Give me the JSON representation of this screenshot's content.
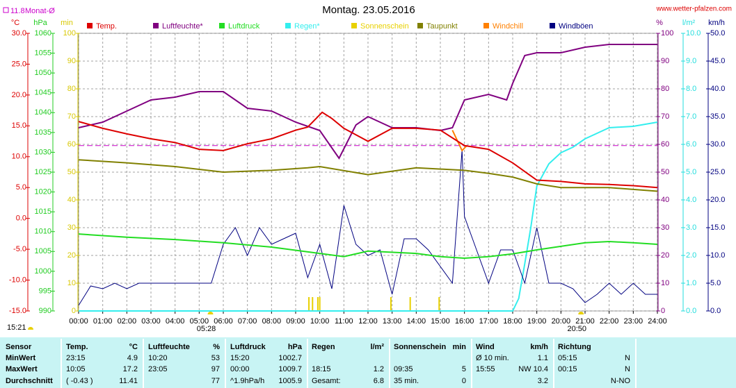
{
  "chart_data": {
    "type": "line",
    "title": "Montag. 23.05.2016",
    "source": "www.wetter-pfalzen.com",
    "updated": "15:21",
    "monthly_mean": {
      "value": 11.8,
      "label": "Monat-Ø",
      "axis": "temp",
      "color": "#cc00cc"
    },
    "xlim": [
      0,
      24
    ],
    "xticks": [
      {
        "value": 0,
        "label": "00:00"
      },
      {
        "value": 1,
        "label": "01:00"
      },
      {
        "value": 2,
        "label": "02:00"
      },
      {
        "value": 3,
        "label": "03:00"
      },
      {
        "value": 4,
        "label": "04:00"
      },
      {
        "value": 5,
        "label": "05:00"
      },
      {
        "value": 6,
        "label": "06:00"
      },
      {
        "value": 7,
        "label": "07:00"
      },
      {
        "value": 8,
        "label": "08:00"
      },
      {
        "value": 9,
        "label": "09:00"
      },
      {
        "value": 10,
        "label": "10:00"
      },
      {
        "value": 11,
        "label": "11:00"
      },
      {
        "value": 12,
        "label": "12:00"
      },
      {
        "value": 13,
        "label": "13:00"
      },
      {
        "value": 14,
        "label": "14:00"
      },
      {
        "value": 15,
        "label": "15:00"
      },
      {
        "value": 16,
        "label": "16:00"
      },
      {
        "value": 17,
        "label": "17:00"
      },
      {
        "value": 18,
        "label": "18:00"
      },
      {
        "value": 19,
        "label": "19:00"
      },
      {
        "value": 20,
        "label": "20:00"
      },
      {
        "value": 21,
        "label": "21:00"
      },
      {
        "value": 22,
        "label": "22:00"
      },
      {
        "value": 23,
        "label": "23:00"
      },
      {
        "value": 24,
        "label": "24:00"
      }
    ],
    "sunrise": {
      "x": 5.4667,
      "label": "05:28"
    },
    "sunset": {
      "x": 20.8333,
      "label": "20:50"
    },
    "grid": true,
    "axes": {
      "temp": {
        "unit": "°C",
        "color": "#dd0000",
        "lim": [
          -15,
          30
        ],
        "ticks": [
          {
            "value": -15,
            "label": "-15.0"
          },
          {
            "value": -10,
            "label": "-10.0"
          },
          {
            "value": -5,
            "label": "-5.0"
          },
          {
            "value": 0,
            "label": "0.0"
          },
          {
            "value": 5,
            "label": "5.0"
          },
          {
            "value": 10,
            "label": "10.0"
          },
          {
            "value": 15,
            "label": "15.0"
          },
          {
            "value": 20,
            "label": "20.0"
          },
          {
            "value": 25,
            "label": "25.0"
          },
          {
            "value": 30,
            "label": "30.0"
          }
        ]
      },
      "pressure": {
        "unit": "hPa",
        "color": "#22cc22",
        "lim": [
          990,
          1060
        ],
        "ticks": [
          990,
          995,
          1000,
          1005,
          1010,
          1015,
          1020,
          1025,
          1030,
          1035,
          1040,
          1045,
          1050,
          1055,
          1060
        ]
      },
      "minutes": {
        "unit": "min",
        "color": "#d8c800",
        "lim": [
          0,
          100
        ],
        "ticks": [
          0,
          10,
          20,
          30,
          40,
          50,
          60,
          70,
          80,
          90,
          100
        ]
      },
      "percent": {
        "unit": "%",
        "color": "#800080",
        "lim": [
          0,
          100
        ],
        "ticks": [
          0,
          10,
          20,
          30,
          40,
          50,
          60,
          70,
          80,
          90,
          100
        ]
      },
      "rain": {
        "unit": "l/m²",
        "color": "#22dddd",
        "lim": [
          0,
          10
        ],
        "ticks": [
          {
            "value": 0,
            "label": "0.0"
          },
          {
            "value": 1,
            "label": "1.0"
          },
          {
            "value": 2,
            "label": "2.0"
          },
          {
            "value": 3,
            "label": "3.0"
          },
          {
            "value": 4,
            "label": "4.0"
          },
          {
            "value": 5,
            "label": "5.0"
          },
          {
            "value": 6,
            "label": "6.0"
          },
          {
            "value": 7,
            "label": "7.0"
          },
          {
            "value": 8,
            "label": "8.0"
          },
          {
            "value": 9,
            "label": "9.0"
          },
          {
            "value": 10,
            "label": "10.0"
          }
        ]
      },
      "wind": {
        "unit": "km/h",
        "color": "#000080",
        "lim": [
          0,
          50
        ],
        "ticks": [
          {
            "value": 0,
            "label": "0.0"
          },
          {
            "value": 5,
            "label": "5.0"
          },
          {
            "value": 10,
            "label": "10.0"
          },
          {
            "value": 15,
            "label": "15.0"
          },
          {
            "value": 20,
            "label": "20.0"
          },
          {
            "value": 25,
            "label": "25.0"
          },
          {
            "value": 30,
            "label": "30.0"
          },
          {
            "value": 35,
            "label": "35.0"
          },
          {
            "value": 40,
            "label": "40.0"
          },
          {
            "value": 45,
            "label": "45.0"
          },
          {
            "value": 50,
            "label": "50.0"
          }
        ]
      }
    },
    "series": [
      {
        "name": "Temp.",
        "color": "#dd0000",
        "type": "line",
        "axis": "temp",
        "x": [
          0,
          1,
          2,
          3,
          4,
          5,
          6,
          7,
          8,
          9,
          9.5,
          10.1,
          10.5,
          11,
          12,
          13,
          14,
          15,
          16,
          17,
          18,
          19,
          20,
          21,
          22,
          23,
          24
        ],
        "values": [
          15.7,
          14.6,
          13.7,
          12.9,
          12.3,
          11.2,
          11.0,
          12.1,
          12.9,
          14.3,
          14.8,
          17.2,
          16.2,
          14.6,
          12.5,
          14.6,
          14.6,
          14.3,
          11.8,
          11.2,
          9.0,
          6.2,
          6.0,
          5.6,
          5.5,
          5.3,
          5.0
        ]
      },
      {
        "name": "Luftfeuchte*",
        "color": "#800080",
        "type": "line",
        "axis": "percent",
        "x": [
          0,
          1,
          2,
          3,
          4,
          5,
          6,
          7,
          8,
          9,
          10,
          10.8,
          11.5,
          12,
          13,
          14,
          15,
          15.5,
          16,
          17,
          17.75,
          18,
          18.5,
          19,
          20,
          21,
          22,
          23,
          24
        ],
        "values": [
          66,
          68,
          72,
          76,
          77,
          79,
          79,
          73,
          72,
          68,
          65,
          55,
          67,
          70,
          66,
          66,
          65,
          66,
          76,
          78,
          76,
          82,
          92,
          93,
          93,
          95,
          96,
          96,
          96
        ]
      },
      {
        "name": "Luftdruck",
        "color": "#22dd22",
        "type": "line",
        "axis": "pressure",
        "x": [
          0,
          2,
          4,
          6,
          8,
          10,
          11,
          12,
          14,
          15,
          16,
          17,
          18,
          19,
          20,
          21,
          22,
          23,
          24
        ],
        "values": [
          1009.4,
          1008.6,
          1008.0,
          1007.2,
          1006.1,
          1004.5,
          1003.7,
          1005.1,
          1004.5,
          1003.7,
          1003.3,
          1003.7,
          1004.4,
          1005.4,
          1006.3,
          1007.2,
          1007.5,
          1007.2,
          1006.8
        ]
      },
      {
        "name": "Regen*",
        "color": "#33eeee",
        "type": "line",
        "axis": "rain",
        "x": [
          0,
          18,
          18.25,
          18.5,
          18.75,
          19,
          19.5,
          20,
          20.5,
          21,
          21.5,
          22,
          23,
          24
        ],
        "values": [
          0,
          0,
          0.45,
          1.7,
          3.0,
          4.5,
          5.3,
          5.7,
          5.9,
          6.2,
          6.4,
          6.6,
          6.65,
          6.8
        ]
      },
      {
        "name": "Sonnenschein",
        "color": "#e8d000",
        "type": "bar",
        "axis": "minutes",
        "x": [
          9.55,
          9.7,
          9.92,
          10.0,
          12.95,
          13.75,
          14.95
        ],
        "values": [
          5,
          5,
          5,
          5,
          5,
          5,
          5
        ]
      },
      {
        "name": "Taupunkt",
        "color": "#808000",
        "type": "line",
        "axis": "temp",
        "x": [
          0,
          2,
          4,
          6,
          8,
          9.5,
          10,
          12,
          14,
          16,
          17,
          18,
          19,
          20,
          22,
          24
        ],
        "values": [
          9.5,
          9.0,
          8.4,
          7.5,
          7.8,
          8.2,
          8.4,
          7.1,
          8.2,
          7.8,
          7.3,
          6.7,
          5.6,
          5.0,
          5.0,
          4.4
        ]
      },
      {
        "name": "Windchill",
        "color": "#ff8000",
        "type": "line",
        "axis": "temp",
        "x": [
          15.5,
          15.9,
          16.1
        ],
        "values": [
          14.3,
          11.0,
          11.8
        ]
      },
      {
        "name": "Windböen",
        "color": "#000080",
        "type": "line",
        "axis": "wind",
        "x": [
          0,
          0.5,
          1,
          1.5,
          2,
          2.5,
          3,
          3.5,
          4,
          4.5,
          5,
          5.5,
          6,
          6.5,
          7,
          7.5,
          8,
          8.5,
          9,
          9.5,
          10,
          10.5,
          11,
          11.5,
          12,
          12.5,
          13,
          13.5,
          14,
          14.5,
          15,
          15.5,
          15.9,
          16,
          16.5,
          17,
          17.5,
          18,
          18.5,
          19,
          19.5,
          20,
          20.5,
          21,
          21.5,
          22,
          22.5,
          23,
          23.5,
          24
        ],
        "values": [
          1,
          4.5,
          4,
          5,
          4,
          5,
          5,
          5,
          5,
          5,
          5,
          5,
          12,
          15,
          10,
          15,
          12,
          13,
          14,
          6,
          12,
          4,
          19,
          12,
          10,
          11,
          3,
          13,
          13,
          11,
          8,
          5,
          29,
          17,
          11,
          5,
          11,
          11,
          5,
          15,
          5,
          5,
          4,
          1.5,
          3,
          5,
          3,
          5,
          3,
          3
        ]
      }
    ]
  },
  "table": {
    "header": {
      "label": "Sensor",
      "cells": [
        {
          "left": "Temp.",
          "right": "°C"
        },
        {
          "left": "Luftfeuchte",
          "right": "%"
        },
        {
          "left": "Luftdruck",
          "right": "hPa"
        },
        {
          "left": "Regen",
          "right": "l/m²"
        },
        {
          "left": "Sonnenschein",
          "right": "min"
        },
        {
          "left": "Wind",
          "right": "km/h"
        },
        {
          "left": "Richtung"
        }
      ]
    },
    "rows": [
      {
        "label": "MinWert",
        "cells": [
          {
            "left": "23:15",
            "right": "4.9"
          },
          {
            "left": "10:20",
            "right": "53"
          },
          {
            "left": "15:20",
            "right": "1002.7"
          },
          {},
          {},
          {
            "left": "Ø 10 min.",
            "right": "1.1"
          },
          {
            "left": "05:15",
            "right": "N"
          }
        ]
      },
      {
        "label": "MaxWert",
        "cells": [
          {
            "left": "10:05",
            "right": "17.2"
          },
          {
            "left": "23:05",
            "right": "97"
          },
          {
            "left": "00:00",
            "right": "1009.7"
          },
          {
            "left": "18:15",
            "right": "1.2"
          },
          {
            "left": "09:35",
            "right": "5"
          },
          {
            "left": "15:55",
            "right": "NW 10.4"
          },
          {
            "left": "00:15",
            "right": "N"
          }
        ]
      },
      {
        "label": "Durchschnitt",
        "cells": [
          {
            "left": "( -0.43 )",
            "right": "11.41"
          },
          {
            "right": "77"
          },
          {
            "left": "^1.9hPa/h",
            "right": "1005.9"
          },
          {
            "left": "Gesamt:",
            "right": "6.8"
          },
          {
            "left": "35 min.",
            "right": "0"
          },
          {
            "right": "3.2"
          },
          {
            "right": "N-NO"
          }
        ]
      }
    ]
  }
}
